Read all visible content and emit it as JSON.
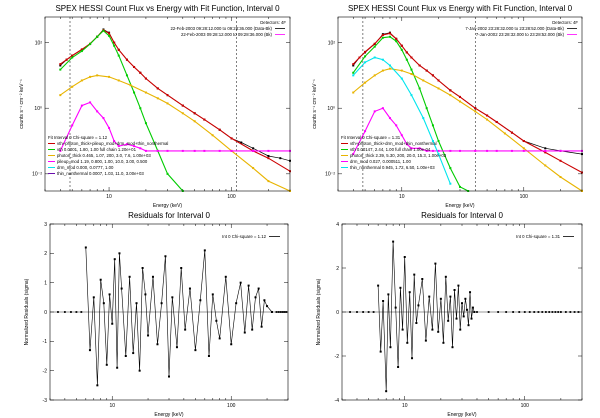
{
  "figure_title": "SPEX HESSI flux and residual panels",
  "chart_data": [
    {
      "id": "flux-left",
      "type": "line",
      "title": "SPEX HESSI Count Flux vs Energy with Fit Function, Interval 0",
      "xlabel": "Energy (keV)",
      "ylabel": "counts s⁻¹ cm⁻² keV⁻¹",
      "xscale": "log",
      "yscale": "log",
      "xlim": [
        3,
        300
      ],
      "ylim": [
        0.003,
        600
      ],
      "xticks": [
        {
          "v": 10,
          "label": "10"
        },
        {
          "v": 100,
          "label": "100"
        }
      ],
      "yticks": [
        {
          "v": 0.01,
          "label": "10⁻²"
        },
        {
          "v": 1,
          "label": "10⁰"
        },
        {
          "v": 100,
          "label": "10²"
        }
      ],
      "detector_label": "Detectors: 4F",
      "time_lines": [
        "22-Feb-2003 09:28:12.000 to 09:28:36.000 (Data-Bk)",
        "22-Feb-2003 09:28:12.000 to 09:28:36.000 (Bk)"
      ],
      "fit_header": "Fit Interval 0   Chi-square = 1.12",
      "vlines": [
        4.8,
        110
      ],
      "series": [
        {
          "name": "data-bk",
          "color": "#000000",
          "marker": true,
          "x": [
            4,
            4.5,
            5,
            6,
            7,
            8,
            9,
            10,
            11,
            12,
            14,
            16,
            18,
            20,
            25,
            30,
            40,
            50,
            60,
            80,
            100,
            120,
            150,
            200,
            250,
            300
          ],
          "y": [
            20,
            30,
            40,
            60,
            90,
            150,
            250,
            200,
            100,
            60,
            30,
            18,
            12,
            8,
            4,
            2.5,
            1.2,
            0.7,
            0.45,
            0.22,
            0.12,
            0.09,
            0.06,
            0.035,
            0.03,
            0.025
          ]
        },
        {
          "name": "vth+photon_thick+pileup_mod+drm_mod+thin_nonthermal",
          "color": "#cc0000",
          "marker": true,
          "x": [
            4,
            4.5,
            5,
            6,
            7,
            8,
            9,
            10,
            11,
            12,
            14,
            16,
            18,
            20,
            25,
            30,
            40,
            50,
            60,
            80,
            100,
            150,
            200,
            300
          ],
          "y": [
            22,
            30,
            40,
            62,
            92,
            150,
            240,
            190,
            100,
            60,
            30,
            18,
            12,
            8,
            4,
            2.5,
            1.2,
            0.7,
            0.45,
            0.22,
            0.12,
            0.05,
            0.03,
            0.012
          ]
        },
        {
          "name": "vth 0.0001, 1.80, 1.00  full chain 1.20e+01",
          "color": "#00cc00",
          "marker": true,
          "x": [
            4,
            5,
            6,
            7,
            8,
            9,
            10,
            11,
            12,
            14,
            16,
            18,
            20,
            25,
            30,
            40
          ],
          "y": [
            15,
            35,
            55,
            90,
            150,
            230,
            160,
            80,
            40,
            10,
            3,
            1,
            0.35,
            0.05,
            0.01,
            0.003
          ]
        },
        {
          "name": "photon_thick 0.465, 1.07, 200, 3.0, 7.6, 1.00e+03",
          "color": "#e8b400",
          "marker": true,
          "x": [
            4,
            5,
            6,
            7,
            8,
            10,
            12,
            15,
            20,
            25,
            30,
            40,
            50,
            70,
            100,
            150,
            200,
            300
          ],
          "y": [
            2.5,
            4.5,
            7,
            9,
            10,
            9,
            7,
            5,
            3,
            2,
            1.4,
            0.7,
            0.4,
            0.15,
            0.05,
            0.015,
            0.006,
            0.003
          ]
        },
        {
          "name": "pileup_mod 1.19, 0.800, 1.00, 10.0, 3.00, 0.500",
          "color": "#ff00ff",
          "marker": true,
          "x": [
            4,
            5,
            6,
            7,
            8,
            9,
            10,
            11,
            12,
            14,
            16,
            18,
            20,
            25,
            30,
            40,
            50,
            60,
            80,
            100,
            150,
            200,
            300
          ],
          "y": [
            0.05,
            0.3,
            1.2,
            1.5,
            0.8,
            0.5,
            0.25,
            0.1,
            0.07,
            0.08,
            0.07,
            0.06,
            0.05,
            0.05,
            0.05,
            0.05,
            0.05,
            0.05,
            0.05,
            0.05,
            0.05,
            0.05,
            0.05
          ]
        },
        {
          "name": "drm_mod 0.000, 0.0777, 1.00",
          "color": "#00e5ee",
          "marker": false,
          "x": [],
          "y": []
        },
        {
          "name": "thin_nonthermal 0.0007, 1.03, 11.0, 3.00e+03",
          "color": "#6a0dad",
          "marker": false,
          "x": [],
          "y": []
        }
      ]
    },
    {
      "id": "flux-right",
      "type": "line",
      "title": "SPEX HESSI Count Flux vs Energy with Fit Function, Interval 0",
      "xlabel": "Energy (keV)",
      "ylabel": "counts s⁻¹ cm⁻² keV⁻¹",
      "xscale": "log",
      "yscale": "log",
      "xlim": [
        3,
        300
      ],
      "ylim": [
        0.003,
        600
      ],
      "xticks": [
        {
          "v": 10,
          "label": "10"
        },
        {
          "v": 100,
          "label": "100"
        }
      ],
      "yticks": [
        {
          "v": 0.01,
          "label": "10⁻²"
        },
        {
          "v": 1,
          "label": "10⁰"
        },
        {
          "v": 100,
          "label": "10²"
        }
      ],
      "detector_label": "Detectors: 4F",
      "time_lines": [
        "7-Jan-2002 23:28:32.000 to 23:28:52.000 (Data-Bk)",
        "7-Jan-2002 23:28:32.000 to 23:28:52.000 (Bk)"
      ],
      "fit_header": "Fit Interval 0   Chi-square = 1.31",
      "vlines": [
        4.8,
        40
      ],
      "series": [
        {
          "name": "data-bk",
          "color": "#000000",
          "marker": true,
          "x": [
            4,
            4.5,
            5,
            6,
            7,
            8,
            9,
            10,
            11,
            12,
            14,
            16,
            18,
            20,
            25,
            30,
            40,
            50,
            60,
            80,
            100,
            150,
            200,
            300
          ],
          "y": [
            20,
            35,
            50,
            90,
            180,
            200,
            130,
            80,
            50,
            35,
            20,
            14,
            10,
            7,
            3.5,
            2.2,
            1.0,
            0.6,
            0.38,
            0.18,
            0.1,
            0.06,
            0.05,
            0.04
          ]
        },
        {
          "name": "vth+photon_thick+drm_mod+thin_nonthermal",
          "color": "#cc0000",
          "marker": true,
          "x": [
            4,
            4.5,
            5,
            6,
            7,
            8,
            9,
            10,
            11,
            12,
            14,
            16,
            18,
            20,
            25,
            30,
            40,
            50,
            60,
            80,
            100,
            150,
            200,
            300
          ],
          "y": [
            22,
            35,
            52,
            92,
            170,
            190,
            130,
            80,
            50,
            35,
            20,
            14,
            10,
            7,
            3.5,
            2.2,
            1.0,
            0.6,
            0.38,
            0.18,
            0.1,
            0.045,
            0.025,
            0.011
          ]
        },
        {
          "name": "vth 0.00147, 2.44, 1.00  full chain 1.00e-04",
          "color": "#00cc00",
          "marker": true,
          "x": [
            4,
            5,
            6,
            7,
            8,
            9,
            10,
            11,
            12,
            14,
            16,
            18,
            20,
            25,
            30,
            35
          ],
          "y": [
            12,
            38,
            75,
            140,
            150,
            110,
            60,
            30,
            15,
            4,
            1,
            0.3,
            0.1,
            0.015,
            0.004,
            0.003
          ]
        },
        {
          "name": "photon_thick 2.39, 5.30, 200, 20.0, 15.3, 1.00e+03",
          "color": "#e8b400",
          "marker": true,
          "x": [
            4,
            5,
            6,
            7,
            8,
            10,
            12,
            15,
            20,
            25,
            30,
            40,
            50,
            70,
            100,
            150,
            200,
            300
          ],
          "y": [
            3,
            6,
            10,
            14,
            16,
            14,
            11,
            7,
            4,
            2.5,
            1.6,
            0.8,
            0.45,
            0.17,
            0.06,
            0.018,
            0.008,
            0.003
          ]
        },
        {
          "name": "drm_mod 0.027, 0.000511, 1.00",
          "color": "#ff00ff",
          "marker": true,
          "x": [
            4,
            5,
            6,
            7,
            8,
            9,
            10,
            11,
            12,
            14,
            16,
            18,
            20,
            25,
            30,
            40,
            50,
            60,
            80,
            100,
            150,
            200,
            300
          ],
          "y": [
            0.04,
            0.2,
            0.8,
            1.0,
            0.5,
            0.3,
            0.15,
            0.08,
            0.06,
            0.06,
            0.05,
            0.05,
            0.05,
            0.05,
            0.05,
            0.05,
            0.05,
            0.05,
            0.05,
            0.05,
            0.05,
            0.05,
            0.05
          ]
        },
        {
          "name": "thin_nonthermal 0.945, 1.72, 6.50, 1.00e+03",
          "color": "#00e5ee",
          "marker": true,
          "x": [
            4,
            5,
            6,
            7,
            8,
            10,
            12,
            15,
            18,
            20,
            25
          ],
          "y": [
            10,
            25,
            35,
            30,
            20,
            8,
            2.5,
            0.5,
            0.1,
            0.04,
            0.005
          ]
        }
      ]
    },
    {
      "id": "resid-left",
      "type": "line",
      "title": "Residuals for Interval 0",
      "xlabel": "Energy (keV)",
      "ylabel": "Normalized Residuals (sigma)",
      "xscale": "log",
      "xlim": [
        3,
        300
      ],
      "ylim": [
        -3,
        3
      ],
      "xticks": [
        {
          "v": 10,
          "label": "10"
        },
        {
          "v": 100,
          "label": "100"
        }
      ],
      "yticks": [
        {
          "v": -3,
          "label": "-3"
        },
        {
          "v": -2,
          "label": "-2"
        },
        {
          "v": -1,
          "label": "-1"
        },
        {
          "v": 0,
          "label": "0"
        },
        {
          "v": 1,
          "label": "1"
        },
        {
          "v": 2,
          "label": "2"
        },
        {
          "v": 3,
          "label": "3"
        }
      ],
      "legend": "Int 0  Chi-square = 1.12",
      "zero_x": [
        3.5,
        4,
        4.5,
        5,
        5.5,
        240,
        250,
        260,
        270,
        280,
        290
      ],
      "x": [
        6,
        6.5,
        7,
        7.5,
        8,
        8.5,
        9,
        9.5,
        10,
        10.5,
        11,
        11.5,
        12,
        13,
        14,
        15,
        16,
        17,
        18,
        19,
        20,
        22,
        24,
        26,
        28,
        30,
        32,
        35,
        38,
        41,
        45,
        50,
        55,
        60,
        65,
        70,
        75,
        80,
        90,
        100,
        110,
        120,
        130,
        140,
        150,
        160,
        170,
        180,
        190,
        200,
        220
      ],
      "y": [
        2.2,
        -1.3,
        0.5,
        -2.5,
        1.1,
        0.3,
        -1.8,
        0.6,
        -0.4,
        1.8,
        -1.9,
        2.0,
        0.8,
        -1.5,
        1.2,
        -1.4,
        0.3,
        -2.0,
        1.5,
        0.6,
        -0.8,
        1.2,
        -1.1,
        0.3,
        1.9,
        -2.2,
        0.5,
        -1.2,
        1.5,
        -0.6,
        0.8,
        -1.3,
        0.4,
        2.1,
        -1.5,
        0.6,
        -0.3,
        -0.9,
        1.2,
        -1.1,
        0.3,
        1.0,
        -0.7,
        0.9,
        -0.6,
        0.5,
        0.8,
        -0.5,
        0.4,
        0.2,
        0
      ]
    },
    {
      "id": "resid-right",
      "type": "line",
      "title": "Residuals for Interval 0",
      "xlabel": "Energy (keV)",
      "ylabel": "Normalized Residuals (sigma)",
      "xscale": "log",
      "xlim": [
        3,
        300
      ],
      "ylim": [
        -4,
        4
      ],
      "xticks": [
        {
          "v": 10,
          "label": "10"
        },
        {
          "v": 100,
          "label": "100"
        }
      ],
      "yticks": [
        {
          "v": -4,
          "label": "-4"
        },
        {
          "v": -2,
          "label": "-2"
        },
        {
          "v": 0,
          "label": "0"
        },
        {
          "v": 2,
          "label": "2"
        },
        {
          "v": 4,
          "label": "4"
        }
      ],
      "legend": "Int 0  Chi-square = 1.31",
      "zero_x": [
        3.5,
        4,
        4.5,
        5,
        5.5,
        40,
        50,
        60,
        70,
        80,
        90,
        100,
        110,
        120,
        130,
        140,
        150,
        160,
        170,
        180,
        190,
        200,
        220,
        240,
        260,
        280
      ],
      "x": [
        6,
        6.3,
        6.6,
        7,
        7.3,
        7.6,
        8,
        8.4,
        8.8,
        9.2,
        9.6,
        10,
        10.5,
        11,
        11.5,
        12,
        12.5,
        13,
        14,
        15,
        16,
        17,
        18,
        19,
        20,
        21,
        22,
        23,
        24,
        25,
        26,
        27,
        28,
        29,
        30,
        31,
        32,
        33,
        34,
        35,
        36,
        37,
        38
      ],
      "y": [
        1.2,
        -1.8,
        0.5,
        -3.6,
        0.8,
        -1.6,
        3.2,
        0.2,
        -2.5,
        1.1,
        -0.8,
        2.5,
        -1.4,
        0.9,
        -2.1,
        1.7,
        -0.5,
        0.3,
        1.5,
        -1.3,
        0.7,
        -0.8,
        2.2,
        -0.9,
        0.6,
        -1.4,
        1.6,
        -0.4,
        0.7,
        -1.6,
        1.0,
        -0.3,
        1.2,
        -0.8,
        0.4,
        -0.2,
        0.6,
        0.1,
        -0.6,
        0.9,
        -0.3,
        0.2,
        0
      ]
    }
  ]
}
